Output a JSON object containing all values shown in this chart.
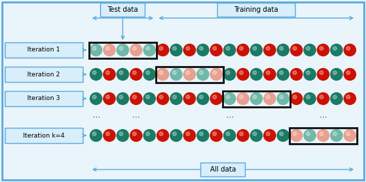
{
  "background_color": "#eaf4fb",
  "border_color": "#5aaadd",
  "title_test": "Test data",
  "title_training": "Training data",
  "title_all": "All data",
  "iterations": [
    "Iteration 1",
    "Iteration 2",
    "Iteration 3",
    "Iteration k=4"
  ],
  "n_balls": 20,
  "k": 4,
  "fold_size": 5,
  "red_color": "#cc1100",
  "teal_color": "#1a7a65",
  "pink_color": "#e8a090",
  "light_teal_color": "#70b8a8",
  "box_color": "#111111",
  "arrow_color": "#5aaadd",
  "label_box_color": "#d8eefa",
  "label_text_color": "#000000",
  "fig_width": 5.26,
  "fig_height": 2.62,
  "dpi": 100,
  "ball_sequence": [
    1,
    0,
    1,
    0,
    1,
    0,
    1,
    0,
    1,
    0,
    1,
    0,
    1,
    0,
    1,
    0,
    1,
    0,
    1,
    0
  ]
}
